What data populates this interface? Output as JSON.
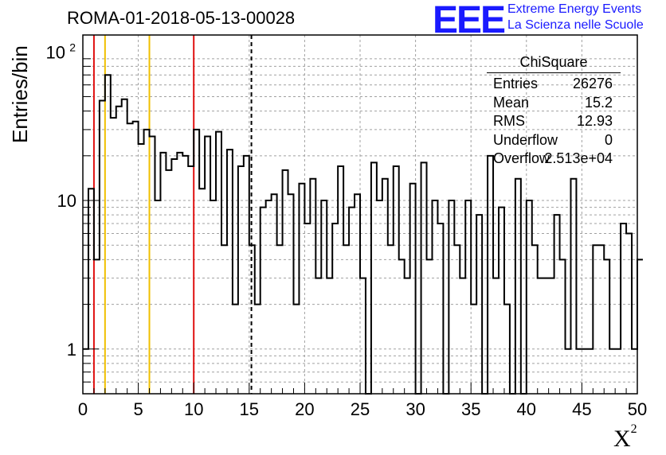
{
  "title": "ROMA-01-2018-05-13-00028",
  "logo": {
    "text": "EEE",
    "line1": "Extreme Energy Events",
    "line2": "La Scienza nelle Scuole",
    "color": "#1a1aff"
  },
  "stats": {
    "title": "ChiSquare",
    "rows": [
      {
        "label": "Entries",
        "value": "26276"
      },
      {
        "label": "Mean",
        "value": "15.2"
      },
      {
        "label": "RMS",
        "value": "12.93"
      },
      {
        "label": "Underflow",
        "value": "0"
      },
      {
        "label": "Overflow",
        "value": "2.513e+04"
      }
    ]
  },
  "chart_data": {
    "type": "histogram",
    "title": "ROMA-01-2018-05-13-00028",
    "xlabel": "X",
    "xlabel_superscript": "2",
    "ylabel": "Entries/bin",
    "xlim": [
      0,
      50
    ],
    "ylim": [
      0.5,
      130
    ],
    "y_scale": "log",
    "grid": true,
    "x_ticks": [
      "0",
      "5",
      "10",
      "15",
      "20",
      "25",
      "30",
      "35",
      "40",
      "45",
      "50"
    ],
    "y_ticks": [
      {
        "value": 1,
        "label": "1"
      },
      {
        "value": 10,
        "label": "10"
      },
      {
        "value": 100,
        "label": "10",
        "exponent": "2"
      }
    ],
    "bin_width": 0.5,
    "bin_start": 0,
    "values": [
      1,
      12,
      4,
      47,
      70,
      36,
      43,
      48,
      33,
      34,
      24,
      30,
      27,
      10,
      21,
      16,
      19,
      21,
      20,
      17,
      30,
      12,
      27,
      10,
      29,
      5,
      22,
      2,
      17,
      20,
      5,
      2,
      9,
      10,
      11,
      5,
      16,
      11,
      2,
      13,
      7,
      14,
      3,
      10,
      3,
      7,
      17,
      5,
      9,
      11,
      3,
      0,
      18,
      10,
      14,
      5,
      17,
      4,
      3,
      13,
      0,
      18,
      4,
      10,
      7,
      0,
      10,
      5,
      3,
      10,
      2,
      8,
      0,
      20,
      3,
      9,
      2,
      0,
      14,
      0,
      10,
      5,
      3,
      3,
      3,
      8,
      4,
      1,
      14,
      1,
      1,
      1,
      5,
      5,
      4,
      1,
      1,
      7,
      6,
      1,
      4
    ],
    "vertical_lines": [
      {
        "x": 1,
        "color": "#e01010",
        "style": "solid"
      },
      {
        "x": 2,
        "color": "#f0c000",
        "style": "solid"
      },
      {
        "x": 6,
        "color": "#f0c000",
        "style": "solid"
      },
      {
        "x": 10,
        "color": "#e01010",
        "style": "solid"
      },
      {
        "x": 15.2,
        "color": "#000000",
        "style": "dashed"
      }
    ]
  }
}
